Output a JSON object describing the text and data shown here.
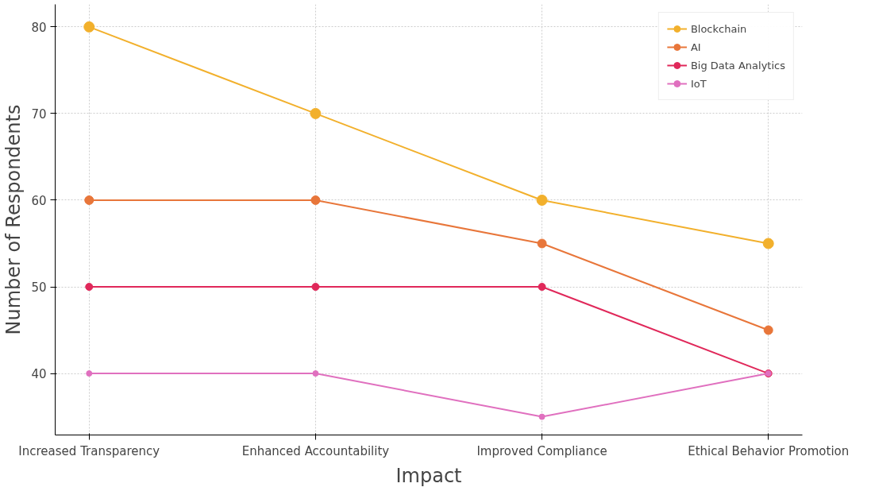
{
  "chart_data": {
    "type": "line",
    "xlabel": "Impact",
    "ylabel": "Number of Respondents",
    "categories": [
      "Increased Transparency",
      "Enhanced Accountability",
      "Improved Compliance",
      "Ethical Behavior Promotion"
    ],
    "series": [
      {
        "name": "Blockchain",
        "color": "#f2b02c",
        "values": [
          80,
          70,
          60,
          55
        ]
      },
      {
        "name": "AI",
        "color": "#e8763a",
        "values": [
          60,
          60,
          55,
          45
        ]
      },
      {
        "name": "Big Data Analytics",
        "color": "#e0285a",
        "values": [
          50,
          50,
          50,
          40
        ]
      },
      {
        "name": "IoT",
        "color": "#e070bf",
        "values": [
          40,
          40,
          35,
          40
        ]
      }
    ],
    "ylim": [
      32.9,
      82.6
    ],
    "yticks": [
      40,
      50,
      60,
      70,
      80
    ],
    "grid": true,
    "legend": "top right",
    "marker": "circle",
    "line_style": "solid"
  }
}
